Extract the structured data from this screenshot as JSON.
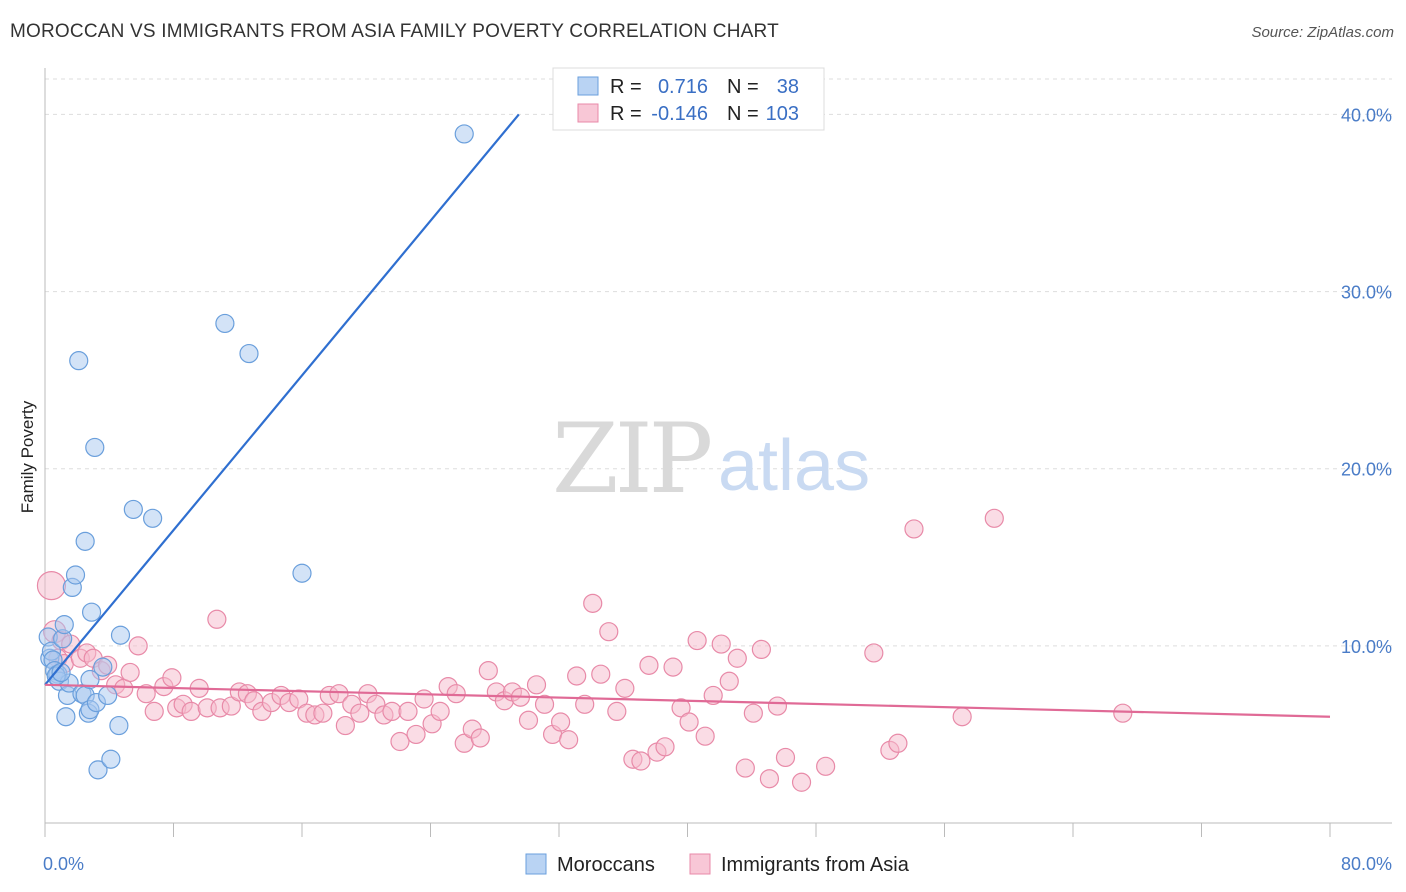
{
  "header": {
    "title": "MOROCCAN VS IMMIGRANTS FROM ASIA FAMILY POVERTY CORRELATION CHART",
    "source": "Source: ZipAtlas.com"
  },
  "watermark": {
    "zip": "ZIP",
    "atlas": "atlas"
  },
  "stats": {
    "moroccans": {
      "r_label": "R =",
      "r": "0.716",
      "n_label": "N =",
      "n": "38"
    },
    "asia": {
      "r_label": "R =",
      "r": "-0.146",
      "n_label": "N =",
      "n": "103"
    }
  },
  "colors": {
    "moroccans_fill": "#a8c8f0",
    "moroccans_stroke": "#6a9fdc",
    "moroccans_line": "#2f6fd0",
    "asia_fill": "#f6b9cc",
    "asia_stroke": "#e88aa8",
    "asia_line": "#e06a96",
    "tick_text": "#4a7cc7",
    "grid": "#dddddd"
  },
  "chart_data": {
    "type": "scatter",
    "title": "MOROCCAN VS IMMIGRANTS FROM ASIA FAMILY POVERTY CORRELATION CHART",
    "xlabel": "",
    "ylabel": "Family Poverty",
    "xlim": [
      0,
      80
    ],
    "ylim": [
      0,
      42
    ],
    "x_tick_labels": [
      "0.0%",
      "80.0%"
    ],
    "y_ticks": [
      10,
      20,
      30,
      40
    ],
    "y_tick_labels": [
      "10.0%",
      "20.0%",
      "30.0%",
      "40.0%"
    ],
    "legend": [
      "Moroccans",
      "Immigrants from Asia"
    ],
    "series": [
      {
        "name": "Moroccans",
        "r": 0.716,
        "n": 38,
        "trend": [
          [
            0.0,
            7.8
          ],
          [
            29.5,
            40.0
          ]
        ],
        "points": [
          [
            0.2,
            10.5
          ],
          [
            0.3,
            9.3
          ],
          [
            0.4,
            9.7
          ],
          [
            0.5,
            9.2
          ],
          [
            0.6,
            8.6
          ],
          [
            0.8,
            8.4
          ],
          [
            0.9,
            8.0
          ],
          [
            1.1,
            10.4
          ],
          [
            1.2,
            11.2
          ],
          [
            1.3,
            6.0
          ],
          [
            1.4,
            7.2
          ],
          [
            1.5,
            7.9
          ],
          [
            1.7,
            13.3
          ],
          [
            1.9,
            14.0
          ],
          [
            2.1,
            26.1
          ],
          [
            2.3,
            7.3
          ],
          [
            2.5,
            7.2
          ],
          [
            2.5,
            15.9
          ],
          [
            2.7,
            6.2
          ],
          [
            2.8,
            8.1
          ],
          [
            2.8,
            6.4
          ],
          [
            2.9,
            11.9
          ],
          [
            3.1,
            21.2
          ],
          [
            3.2,
            6.8
          ],
          [
            3.3,
            3.0
          ],
          [
            3.6,
            8.8
          ],
          [
            3.9,
            7.2
          ],
          [
            4.1,
            3.6
          ],
          [
            4.6,
            5.5
          ],
          [
            4.7,
            10.6
          ],
          [
            5.5,
            17.7
          ],
          [
            6.7,
            17.2
          ],
          [
            11.2,
            28.2
          ],
          [
            12.7,
            26.5
          ],
          [
            16.0,
            14.1
          ],
          [
            26.1,
            38.9
          ],
          [
            0.7,
            8.3
          ],
          [
            1.0,
            8.5
          ]
        ]
      },
      {
        "name": "Immigrants from Asia",
        "r": -0.146,
        "n": 103,
        "trend": [
          [
            0.0,
            7.8
          ],
          [
            80.0,
            6.0
          ]
        ],
        "points": [
          [
            0.4,
            13.4
          ],
          [
            0.6,
            10.8
          ],
          [
            0.8,
            9.3
          ],
          [
            1.0,
            10.3
          ],
          [
            1.2,
            9.0
          ],
          [
            1.6,
            10.1
          ],
          [
            2.2,
            9.3
          ],
          [
            2.6,
            9.6
          ],
          [
            3.0,
            9.3
          ],
          [
            3.5,
            8.6
          ],
          [
            3.9,
            8.9
          ],
          [
            4.4,
            7.8
          ],
          [
            4.9,
            7.6
          ],
          [
            5.3,
            8.5
          ],
          [
            5.8,
            10.0
          ],
          [
            6.3,
            7.3
          ],
          [
            6.8,
            6.3
          ],
          [
            7.4,
            7.7
          ],
          [
            7.9,
            8.2
          ],
          [
            8.2,
            6.5
          ],
          [
            8.6,
            6.7
          ],
          [
            9.1,
            6.3
          ],
          [
            9.6,
            7.6
          ],
          [
            10.1,
            6.5
          ],
          [
            10.7,
            11.5
          ],
          [
            10.9,
            6.5
          ],
          [
            11.6,
            6.6
          ],
          [
            12.1,
            7.4
          ],
          [
            12.6,
            7.3
          ],
          [
            13.0,
            6.9
          ],
          [
            13.5,
            6.3
          ],
          [
            14.1,
            6.8
          ],
          [
            14.7,
            7.2
          ],
          [
            15.2,
            6.8
          ],
          [
            15.8,
            7.0
          ],
          [
            16.3,
            6.2
          ],
          [
            16.8,
            6.1
          ],
          [
            17.3,
            6.2
          ],
          [
            17.7,
            7.2
          ],
          [
            18.3,
            7.3
          ],
          [
            18.7,
            5.5
          ],
          [
            19.1,
            6.7
          ],
          [
            19.6,
            6.2
          ],
          [
            20.1,
            7.3
          ],
          [
            20.6,
            6.7
          ],
          [
            21.1,
            6.1
          ],
          [
            21.6,
            6.3
          ],
          [
            22.1,
            4.6
          ],
          [
            22.6,
            6.3
          ],
          [
            23.1,
            5.0
          ],
          [
            23.6,
            7.0
          ],
          [
            24.1,
            5.6
          ],
          [
            24.6,
            6.3
          ],
          [
            25.1,
            7.7
          ],
          [
            25.6,
            7.3
          ],
          [
            26.1,
            4.5
          ],
          [
            26.6,
            5.3
          ],
          [
            27.1,
            4.8
          ],
          [
            27.6,
            8.6
          ],
          [
            28.1,
            7.4
          ],
          [
            28.6,
            6.9
          ],
          [
            29.1,
            7.4
          ],
          [
            29.6,
            7.1
          ],
          [
            30.1,
            5.8
          ],
          [
            30.6,
            7.8
          ],
          [
            31.1,
            6.7
          ],
          [
            31.6,
            5.0
          ],
          [
            32.1,
            5.7
          ],
          [
            32.6,
            4.7
          ],
          [
            33.1,
            8.3
          ],
          [
            33.6,
            6.7
          ],
          [
            34.1,
            12.4
          ],
          [
            34.6,
            8.4
          ],
          [
            35.1,
            10.8
          ],
          [
            35.6,
            6.3
          ],
          [
            36.1,
            7.6
          ],
          [
            36.6,
            3.6
          ],
          [
            37.1,
            3.5
          ],
          [
            37.6,
            8.9
          ],
          [
            38.1,
            4.0
          ],
          [
            38.6,
            4.3
          ],
          [
            39.1,
            8.8
          ],
          [
            39.6,
            6.5
          ],
          [
            40.1,
            5.7
          ],
          [
            40.6,
            10.3
          ],
          [
            41.1,
            4.9
          ],
          [
            41.6,
            7.2
          ],
          [
            42.1,
            10.1
          ],
          [
            42.6,
            8.0
          ],
          [
            43.1,
            9.3
          ],
          [
            43.6,
            3.1
          ],
          [
            44.1,
            6.2
          ],
          [
            44.6,
            9.8
          ],
          [
            45.1,
            2.5
          ],
          [
            45.6,
            6.6
          ],
          [
            46.1,
            3.7
          ],
          [
            47.1,
            2.3
          ],
          [
            48.6,
            3.2
          ],
          [
            51.6,
            9.6
          ],
          [
            52.6,
            4.1
          ],
          [
            53.1,
            4.5
          ],
          [
            54.1,
            16.6
          ],
          [
            57.1,
            6.0
          ],
          [
            59.1,
            17.2
          ],
          [
            67.1,
            6.2
          ]
        ]
      }
    ]
  }
}
